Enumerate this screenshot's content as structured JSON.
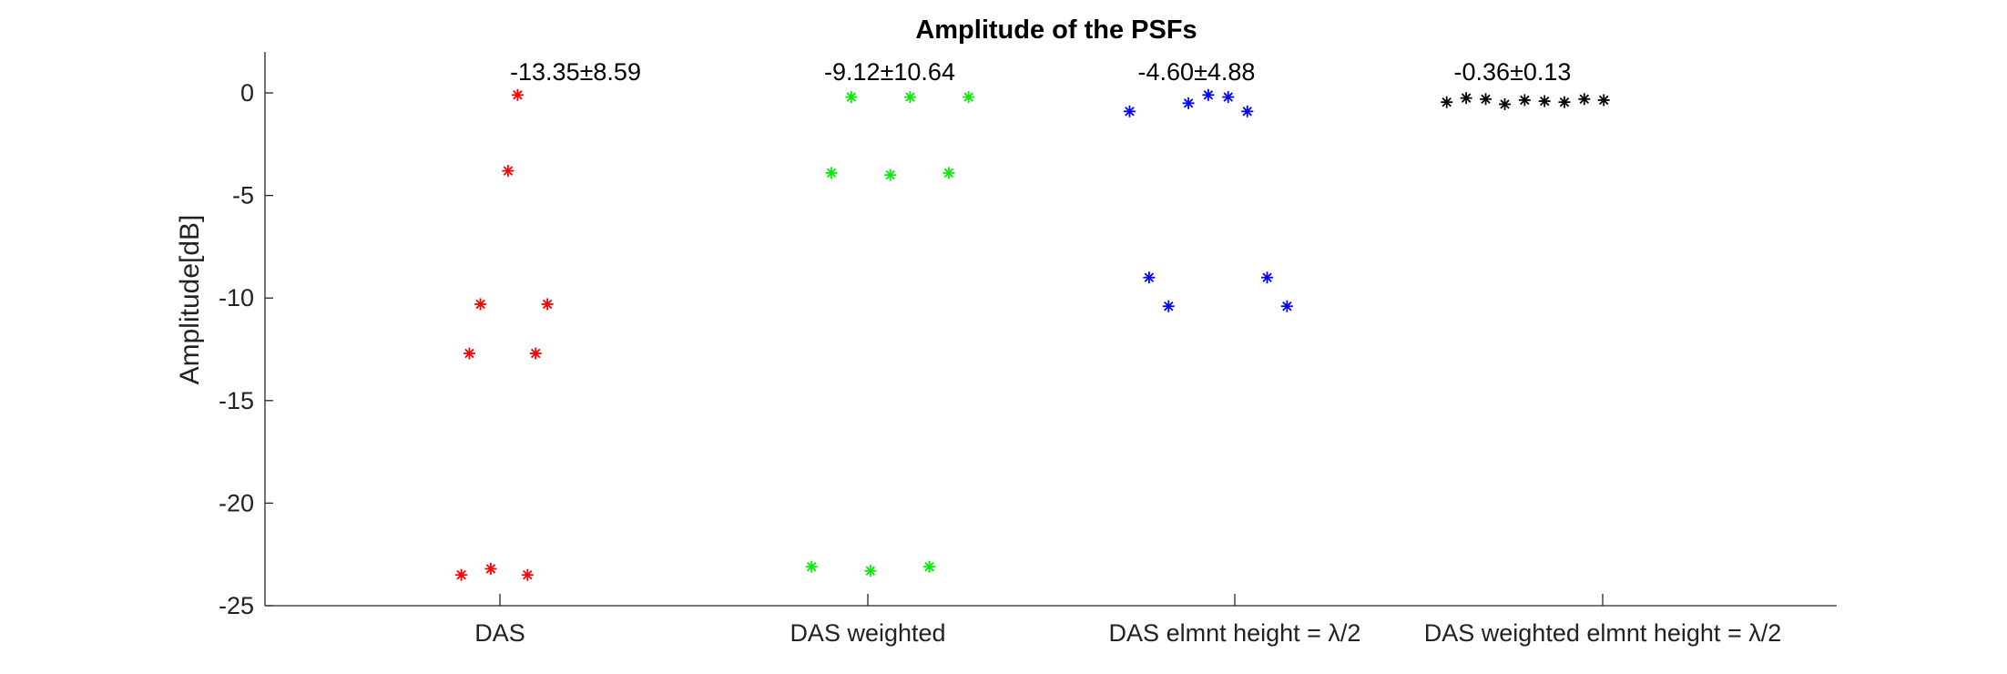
{
  "chart_data": {
    "type": "scatter",
    "title": "Amplitude of the PSFs",
    "xlabel": "",
    "ylabel": "Amplitude[dB]",
    "ylim": [
      -25,
      2
    ],
    "yticks": [
      0,
      -5,
      -10,
      -15,
      -20,
      -25
    ],
    "ytick_labels": [
      "0",
      "-5",
      "-10",
      "-15",
      "-20",
      "-25"
    ],
    "grid": false,
    "marker": "asterisk",
    "categories": [
      "DAS",
      "DAS weighted",
      "DAS elmnt height = λ/2",
      "DAS weighted elmnt height = λ/2"
    ],
    "series": [
      {
        "category": "DAS",
        "color": "#ff0000",
        "annotation": "-13.35±8.59",
        "points": [
          {
            "x_offset": -0.105,
            "y": -23.5
          },
          {
            "x_offset": -0.083,
            "y": -12.7
          },
          {
            "x_offset": -0.053,
            "y": -10.3
          },
          {
            "x_offset": -0.025,
            "y": -23.2
          },
          {
            "x_offset": 0.022,
            "y": -3.8
          },
          {
            "x_offset": 0.048,
            "y": -0.1
          },
          {
            "x_offset": 0.075,
            "y": -23.5
          },
          {
            "x_offset": 0.097,
            "y": -12.7
          },
          {
            "x_offset": 0.129,
            "y": -10.3
          }
        ]
      },
      {
        "category": "DAS weighted",
        "color": "#00ee00",
        "annotation": "-9.12±10.64",
        "points": [
          {
            "x_offset": -0.153,
            "y": -23.1
          },
          {
            "x_offset": -0.099,
            "y": -3.9
          },
          {
            "x_offset": -0.045,
            "y": -0.2
          },
          {
            "x_offset": 0.007,
            "y": -23.3
          },
          {
            "x_offset": 0.061,
            "y": -4.0
          },
          {
            "x_offset": 0.115,
            "y": -0.2
          },
          {
            "x_offset": 0.167,
            "y": -23.1
          },
          {
            "x_offset": 0.22,
            "y": -3.9
          },
          {
            "x_offset": 0.274,
            "y": -0.2
          }
        ]
      },
      {
        "category": "DAS elmnt height = λ/2",
        "color": "#0000ff",
        "annotation": "-4.60±4.88",
        "points": [
          {
            "x_offset": -0.286,
            "y": -0.9
          },
          {
            "x_offset": -0.233,
            "y": -9.0
          },
          {
            "x_offset": -0.18,
            "y": -10.4
          },
          {
            "x_offset": -0.126,
            "y": -0.5
          },
          {
            "x_offset": -0.072,
            "y": -0.1
          },
          {
            "x_offset": -0.018,
            "y": -0.2
          },
          {
            "x_offset": 0.034,
            "y": -0.9
          },
          {
            "x_offset": 0.088,
            "y": -9.0
          },
          {
            "x_offset": 0.142,
            "y": -10.4
          }
        ]
      },
      {
        "category": "DAS weighted elmnt height = λ/2",
        "color": "#000000",
        "annotation": "-0.36±0.13",
        "points": [
          {
            "x_offset": -0.424,
            "y": -0.45
          },
          {
            "x_offset": -0.371,
            "y": -0.25
          },
          {
            "x_offset": -0.318,
            "y": -0.3
          },
          {
            "x_offset": -0.266,
            "y": -0.55
          },
          {
            "x_offset": -0.212,
            "y": -0.35
          },
          {
            "x_offset": -0.158,
            "y": -0.4
          },
          {
            "x_offset": -0.104,
            "y": -0.45
          },
          {
            "x_offset": -0.05,
            "y": -0.3
          },
          {
            "x_offset": 0.003,
            "y": -0.35
          }
        ]
      }
    ]
  }
}
